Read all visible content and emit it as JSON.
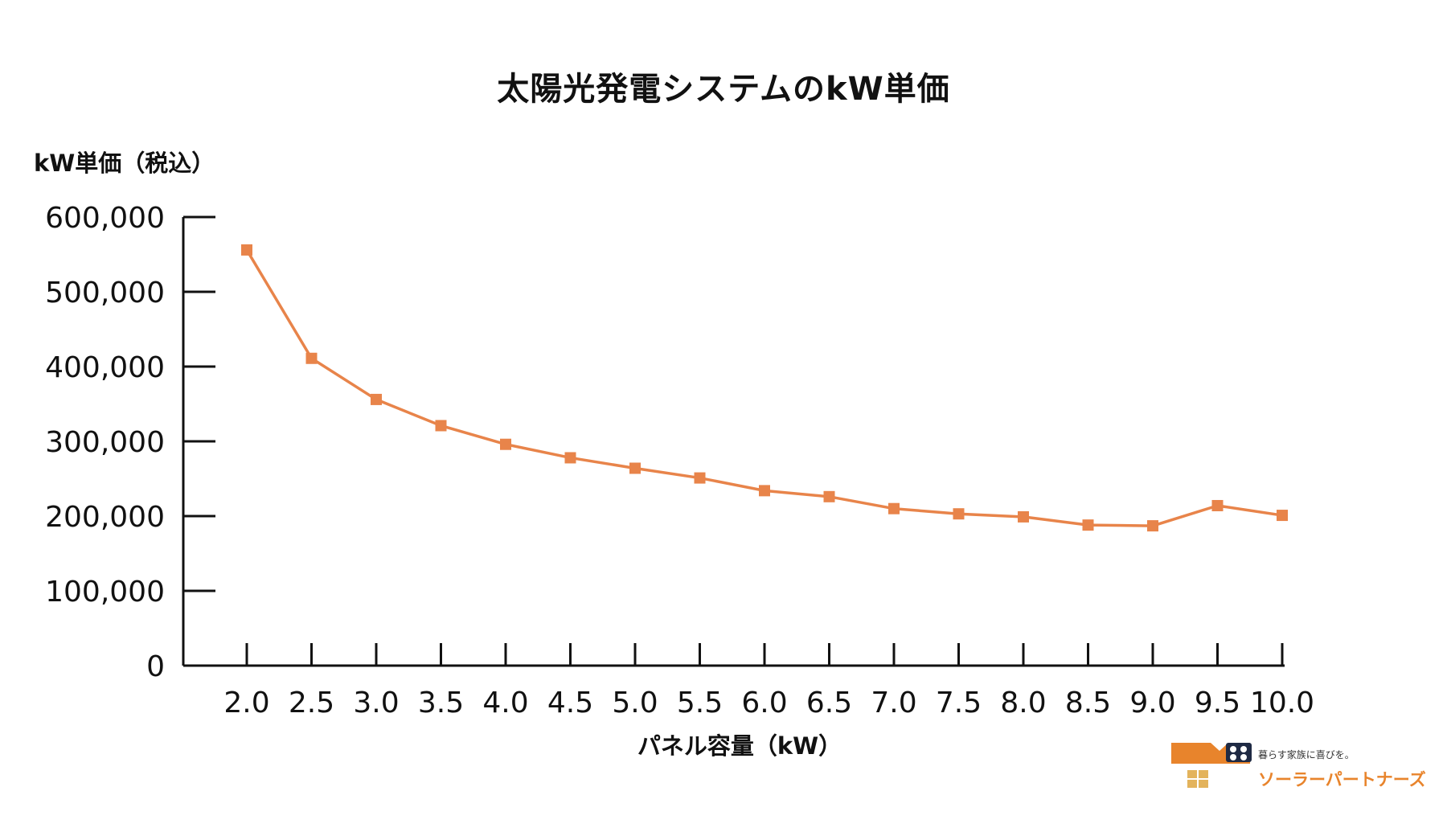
{
  "chart_data": {
    "type": "line",
    "title": "太陽光発電システムのkW単価",
    "ylabel": "kW単価（税込）",
    "xlabel": "パネル容量（kW）",
    "categories": [
      "2.0",
      "2.5",
      "3.0",
      "3.5",
      "4.0",
      "4.5",
      "5.0",
      "5.5",
      "6.0",
      "6.5",
      "7.0",
      "7.5",
      "8.0",
      "8.5",
      "9.0",
      "9.5",
      "10.0"
    ],
    "series": [
      {
        "values": [
          556000,
          411000,
          356000,
          321000,
          296000,
          278000,
          264000,
          251000,
          234000,
          226000,
          210000,
          203000,
          199000,
          188000,
          187000,
          214000,
          201000
        ],
        "color": "#e8844a",
        "marker": "square"
      }
    ],
    "ylim": [
      0,
      600000
    ],
    "yticks": [
      0,
      100000,
      200000,
      300000,
      400000,
      500000,
      600000
    ],
    "ytick_labels": [
      "0",
      "100,000",
      "200,000",
      "300,000",
      "400,000",
      "500,000",
      "600,000"
    ],
    "grid": false,
    "legend": "none"
  },
  "brand": {
    "tagline": "暮らす家族に喜びを。",
    "name": "ソーラーパートナーズ",
    "accent": "#e8842c",
    "secondary": "#e3b35c",
    "dark": "#1f2a44"
  }
}
